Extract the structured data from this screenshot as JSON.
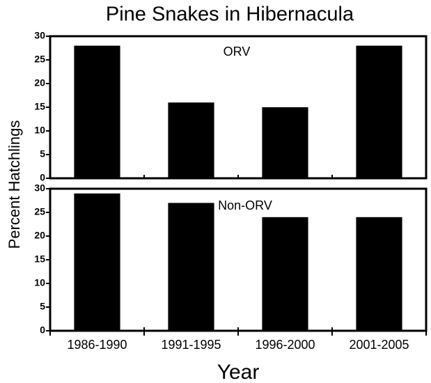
{
  "title": "Pine Snakes in Hibernacula",
  "y_label": "Percent Hatchlings",
  "x_label": "Year",
  "categories": [
    "1986-1990",
    "1991-1995",
    "1996-2000",
    "2001-2005"
  ],
  "chart_data": [
    {
      "type": "bar",
      "label": "ORV",
      "values": [
        28,
        16,
        15,
        28
      ],
      "color": "#000000",
      "ylim": [
        0,
        30
      ],
      "yticks": [
        0,
        5,
        10,
        15,
        20,
        25,
        30
      ]
    },
    {
      "type": "bar",
      "label": "Non-ORV",
      "values": [
        29,
        27,
        24,
        24
      ],
      "color": "#000000",
      "ylim": [
        0,
        30
      ],
      "yticks": [
        0,
        5,
        10,
        15,
        20,
        25,
        30
      ]
    }
  ]
}
